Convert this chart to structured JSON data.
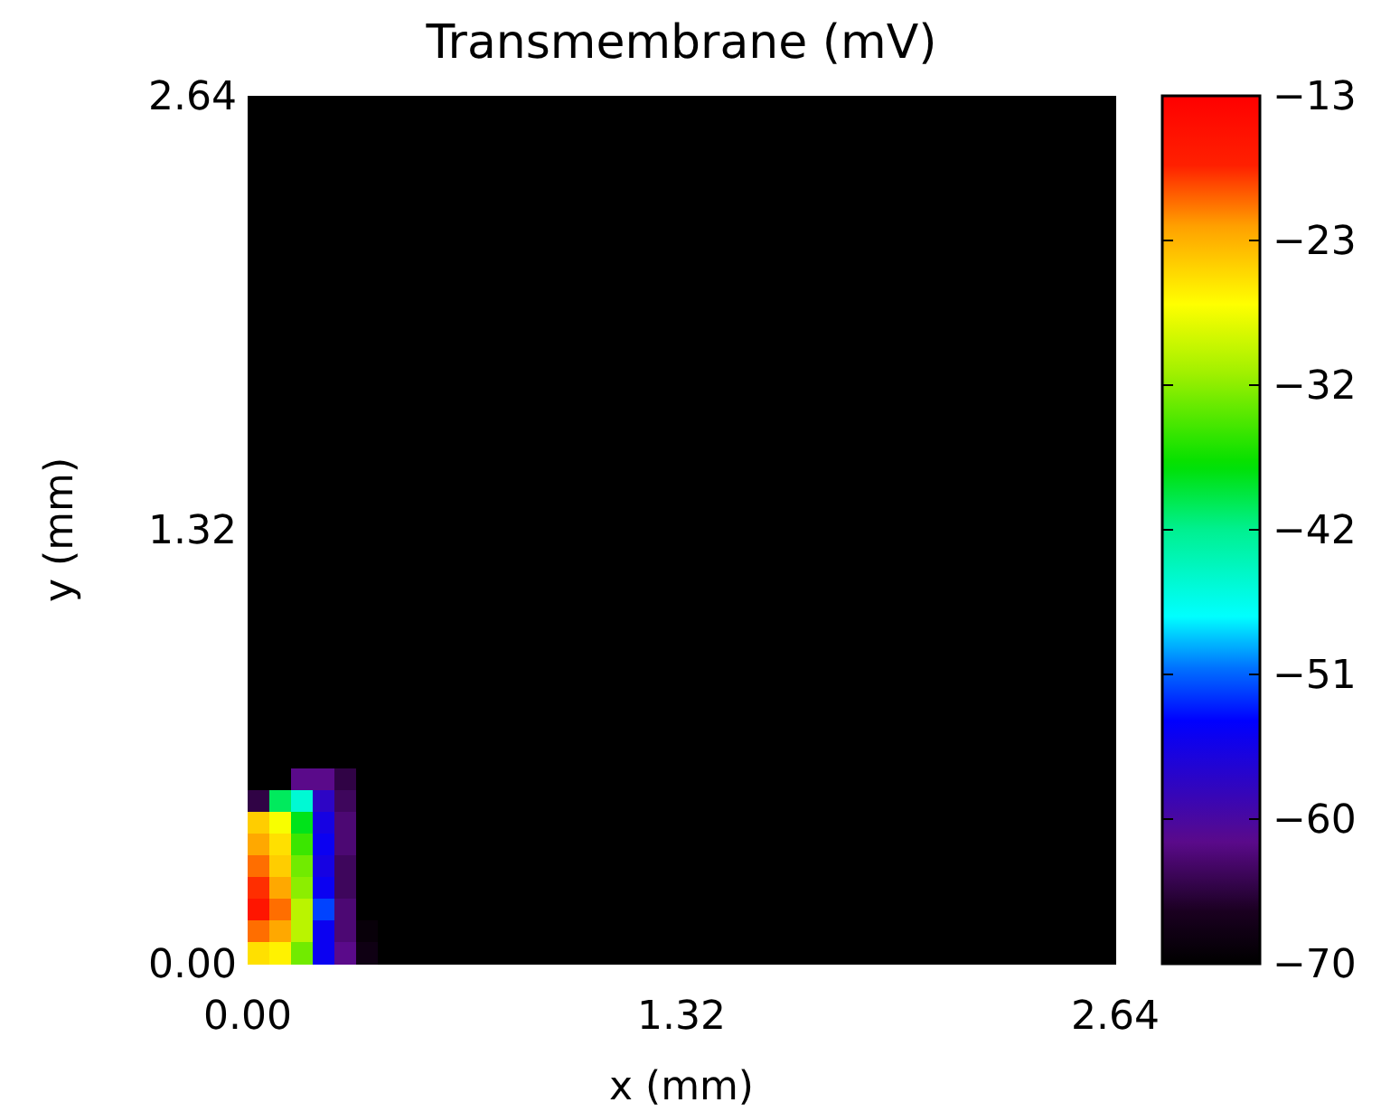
{
  "chart_data": {
    "type": "heatmap",
    "title": "Transmembrane (mV)",
    "xlabel": "x (mm)",
    "ylabel": "y (mm)",
    "xlim": [
      0,
      2.64
    ],
    "ylim": [
      0,
      2.64
    ],
    "xticks": [
      {
        "value": 0,
        "label": "0.00"
      },
      {
        "value": 1.32,
        "label": "1.32"
      },
      {
        "value": 2.64,
        "label": "2.64"
      }
    ],
    "yticks": [
      {
        "value": 0,
        "label": "0.00"
      },
      {
        "value": 1.32,
        "label": "1.32"
      },
      {
        "value": 2.64,
        "label": "2.64"
      }
    ],
    "clim": [
      -70,
      -13
    ],
    "cticks": [
      {
        "value": -13,
        "label": "−13"
      },
      {
        "value": -22.5,
        "label": "−23"
      },
      {
        "value": -32,
        "label": "−32"
      },
      {
        "value": -41.5,
        "label": "−42"
      },
      {
        "value": -51,
        "label": "−51"
      },
      {
        "value": -60.5,
        "label": "−60"
      },
      {
        "value": -70,
        "label": "−70"
      }
    ],
    "cells": [
      [
        -70,
        -70,
        -70,
        -70,
        -70,
        -70,
        -70,
        -70,
        -70,
        -70,
        -70,
        -70,
        -70,
        -70,
        -70,
        -70,
        -70,
        -70,
        -70,
        -70,
        -70,
        -70,
        -70,
        -70,
        -70,
        -70,
        -70,
        -70,
        -70,
        -70,
        -70,
        -70,
        -70,
        -70,
        -70,
        -70,
        -70,
        -70,
        -70,
        -70
      ],
      [
        -70,
        -70,
        -70,
        -70,
        -70,
        -70,
        -70,
        -70,
        -70,
        -70,
        -70,
        -70,
        -70,
        -70,
        -70,
        -70,
        -70,
        -70,
        -70,
        -70,
        -70,
        -70,
        -70,
        -70,
        -70,
        -70,
        -70,
        -70,
        -70,
        -70,
        -70,
        -70,
        -70,
        -70,
        -70,
        -70,
        -70,
        -70,
        -70,
        -70
      ],
      [
        -70,
        -70,
        -70,
        -70,
        -70,
        -70,
        -70,
        -70,
        -70,
        -70,
        -70,
        -70,
        -70,
        -70,
        -70,
        -70,
        -70,
        -70,
        -70,
        -70,
        -70,
        -70,
        -70,
        -70,
        -70,
        -70,
        -70,
        -70,
        -70,
        -70,
        -70,
        -70,
        -70,
        -70,
        -70,
        -70,
        -70,
        -70,
        -70,
        -70
      ],
      [
        -70,
        -70,
        -70,
        -70,
        -70,
        -70,
        -70,
        -70,
        -70,
        -70,
        -70,
        -70,
        -70,
        -70,
        -70,
        -70,
        -70,
        -70,
        -70,
        -70,
        -70,
        -70,
        -70,
        -70,
        -70,
        -70,
        -70,
        -70,
        -70,
        -70,
        -70,
        -70,
        -70,
        -70,
        -70,
        -70,
        -70,
        -70,
        -70,
        -70
      ],
      [
        -70,
        -70,
        -70,
        -70,
        -70,
        -70,
        -70,
        -70,
        -70,
        -70,
        -70,
        -70,
        -70,
        -70,
        -70,
        -70,
        -70,
        -70,
        -70,
        -70,
        -70,
        -70,
        -70,
        -70,
        -70,
        -70,
        -70,
        -70,
        -70,
        -70,
        -70,
        -70,
        -70,
        -70,
        -70,
        -70,
        -70,
        -70,
        -70,
        -70
      ],
      [
        -70,
        -70,
        -70,
        -70,
        -70,
        -70,
        -70,
        -70,
        -70,
        -70,
        -70,
        -70,
        -70,
        -70,
        -70,
        -70,
        -70,
        -70,
        -70,
        -70,
        -70,
        -70,
        -70,
        -70,
        -70,
        -70,
        -70,
        -70,
        -70,
        -70,
        -70,
        -70,
        -70,
        -70,
        -70,
        -70,
        -70,
        -70,
        -70,
        -70
      ],
      [
        -70,
        -70,
        -70,
        -70,
        -70,
        -70,
        -70,
        -70,
        -70,
        -70,
        -70,
        -70,
        -70,
        -70,
        -70,
        -70,
        -70,
        -70,
        -70,
        -70,
        -70,
        -70,
        -70,
        -70,
        -70,
        -70,
        -70,
        -70,
        -70,
        -70,
        -70,
        -70,
        -70,
        -70,
        -70,
        -70,
        -70,
        -70,
        -70,
        -70
      ],
      [
        -70,
        -70,
        -70,
        -70,
        -70,
        -70,
        -70,
        -70,
        -70,
        -70,
        -70,
        -70,
        -70,
        -70,
        -70,
        -70,
        -70,
        -70,
        -70,
        -70,
        -70,
        -70,
        -70,
        -70,
        -70,
        -70,
        -70,
        -70,
        -70,
        -70,
        -70,
        -70,
        -70,
        -70,
        -70,
        -70,
        -70,
        -70,
        -70,
        -70
      ],
      [
        -70,
        -70,
        -70,
        -70,
        -70,
        -70,
        -70,
        -70,
        -70,
        -70,
        -70,
        -70,
        -70,
        -70,
        -70,
        -70,
        -70,
        -70,
        -70,
        -70,
        -70,
        -70,
        -70,
        -70,
        -70,
        -70,
        -70,
        -70,
        -70,
        -70,
        -70,
        -70,
        -70,
        -70,
        -70,
        -70,
        -70,
        -70,
        -70,
        -70
      ],
      [
        -70,
        -70,
        -70,
        -70,
        -70,
        -70,
        -70,
        -70,
        -70,
        -70,
        -70,
        -70,
        -70,
        -70,
        -70,
        -70,
        -70,
        -70,
        -70,
        -70,
        -70,
        -70,
        -70,
        -70,
        -70,
        -70,
        -70,
        -70,
        -70,
        -70,
        -70,
        -70,
        -70,
        -70,
        -70,
        -70,
        -70,
        -70,
        -70,
        -70
      ],
      [
        -70,
        -70,
        -70,
        -70,
        -70,
        -70,
        -70,
        -70,
        -70,
        -70,
        -70,
        -70,
        -70,
        -70,
        -70,
        -70,
        -70,
        -70,
        -70,
        -70,
        -70,
        -70,
        -70,
        -70,
        -70,
        -70,
        -70,
        -70,
        -70,
        -70,
        -70,
        -70,
        -70,
        -70,
        -70,
        -70,
        -70,
        -70,
        -70,
        -70
      ],
      [
        -70,
        -70,
        -70,
        -70,
        -70,
        -70,
        -70,
        -70,
        -70,
        -70,
        -70,
        -70,
        -70,
        -70,
        -70,
        -70,
        -70,
        -70,
        -70,
        -70,
        -70,
        -70,
        -70,
        -70,
        -70,
        -70,
        -70,
        -70,
        -70,
        -70,
        -70,
        -70,
        -70,
        -70,
        -70,
        -70,
        -70,
        -70,
        -70,
        -70
      ],
      [
        -70,
        -70,
        -70,
        -70,
        -70,
        -70,
        -70,
        -70,
        -70,
        -70,
        -70,
        -70,
        -70,
        -70,
        -70,
        -70,
        -70,
        -70,
        -70,
        -70,
        -70,
        -70,
        -70,
        -70,
        -70,
        -70,
        -70,
        -70,
        -70,
        -70,
        -70,
        -70,
        -70,
        -70,
        -70,
        -70,
        -70,
        -70,
        -70,
        -70
      ],
      [
        -70,
        -70,
        -70,
        -70,
        -70,
        -70,
        -70,
        -70,
        -70,
        -70,
        -70,
        -70,
        -70,
        -70,
        -70,
        -70,
        -70,
        -70,
        -70,
        -70,
        -70,
        -70,
        -70,
        -70,
        -70,
        -70,
        -70,
        -70,
        -70,
        -70,
        -70,
        -70,
        -70,
        -70,
        -70,
        -70,
        -70,
        -70,
        -70,
        -70
      ],
      [
        -70,
        -70,
        -70,
        -70,
        -70,
        -70,
        -70,
        -70,
        -70,
        -70,
        -70,
        -70,
        -70,
        -70,
        -70,
        -70,
        -70,
        -70,
        -70,
        -70,
        -70,
        -70,
        -70,
        -70,
        -70,
        -70,
        -70,
        -70,
        -70,
        -70,
        -70,
        -70,
        -70,
        -70,
        -70,
        -70,
        -70,
        -70,
        -70,
        -70
      ],
      [
        -70,
        -70,
        -70,
        -70,
        -70,
        -70,
        -70,
        -70,
        -70,
        -70,
        -70,
        -70,
        -70,
        -70,
        -70,
        -70,
        -70,
        -70,
        -70,
        -70,
        -70,
        -70,
        -70,
        -70,
        -70,
        -70,
        -70,
        -70,
        -70,
        -70,
        -70,
        -70,
        -70,
        -70,
        -70,
        -70,
        -70,
        -70,
        -70,
        -70
      ],
      [
        -70,
        -70,
        -70,
        -70,
        -70,
        -70,
        -70,
        -70,
        -70,
        -70,
        -70,
        -70,
        -70,
        -70,
        -70,
        -70,
        -70,
        -70,
        -70,
        -70,
        -70,
        -70,
        -70,
        -70,
        -70,
        -70,
        -70,
        -70,
        -70,
        -70,
        -70,
        -70,
        -70,
        -70,
        -70,
        -70,
        -70,
        -70,
        -70,
        -70
      ],
      [
        -70,
        -70,
        -70,
        -70,
        -70,
        -70,
        -70,
        -70,
        -70,
        -70,
        -70,
        -70,
        -70,
        -70,
        -70,
        -70,
        -70,
        -70,
        -70,
        -70,
        -70,
        -70,
        -70,
        -70,
        -70,
        -70,
        -70,
        -70,
        -70,
        -70,
        -70,
        -70,
        -70,
        -70,
        -70,
        -70,
        -70,
        -70,
        -70,
        -70
      ],
      [
        -70,
        -70,
        -70,
        -70,
        -70,
        -70,
        -70,
        -70,
        -70,
        -70,
        -70,
        -70,
        -70,
        -70,
        -70,
        -70,
        -70,
        -70,
        -70,
        -70,
        -70,
        -70,
        -70,
        -70,
        -70,
        -70,
        -70,
        -70,
        -70,
        -70,
        -70,
        -70,
        -70,
        -70,
        -70,
        -70,
        -70,
        -70,
        -70,
        -70
      ],
      [
        -70,
        -70,
        -70,
        -70,
        -70,
        -70,
        -70,
        -70,
        -70,
        -70,
        -70,
        -70,
        -70,
        -70,
        -70,
        -70,
        -70,
        -70,
        -70,
        -70,
        -70,
        -70,
        -70,
        -70,
        -70,
        -70,
        -70,
        -70,
        -70,
        -70,
        -70,
        -70,
        -70,
        -70,
        -70,
        -70,
        -70,
        -70,
        -70,
        -70
      ],
      [
        -70,
        -70,
        -70,
        -70,
        -70,
        -70,
        -70,
        -70,
        -70,
        -70,
        -70,
        -70,
        -70,
        -70,
        -70,
        -70,
        -70,
        -70,
        -70,
        -70,
        -70,
        -70,
        -70,
        -70,
        -70,
        -70,
        -70,
        -70,
        -70,
        -70,
        -70,
        -70,
        -70,
        -70,
        -70,
        -70,
        -70,
        -70,
        -70,
        -70
      ],
      [
        -70,
        -70,
        -70,
        -70,
        -70,
        -70,
        -70,
        -70,
        -70,
        -70,
        -70,
        -70,
        -70,
        -70,
        -70,
        -70,
        -70,
        -70,
        -70,
        -70,
        -70,
        -70,
        -70,
        -70,
        -70,
        -70,
        -70,
        -70,
        -70,
        -70,
        -70,
        -70,
        -70,
        -70,
        -70,
        -70,
        -70,
        -70,
        -70,
        -70
      ],
      [
        -70,
        -70,
        -70,
        -70,
        -70,
        -70,
        -70,
        -70,
        -70,
        -70,
        -70,
        -70,
        -70,
        -70,
        -70,
        -70,
        -70,
        -70,
        -70,
        -70,
        -70,
        -70,
        -70,
        -70,
        -70,
        -70,
        -70,
        -70,
        -70,
        -70,
        -70,
        -70,
        -70,
        -70,
        -70,
        -70,
        -70,
        -70,
        -70,
        -70
      ],
      [
        -70,
        -70,
        -70,
        -70,
        -70,
        -70,
        -70,
        -70,
        -70,
        -70,
        -70,
        -70,
        -70,
        -70,
        -70,
        -70,
        -70,
        -70,
        -70,
        -70,
        -70,
        -70,
        -70,
        -70,
        -70,
        -70,
        -70,
        -70,
        -70,
        -70,
        -70,
        -70,
        -70,
        -70,
        -70,
        -70,
        -70,
        -70,
        -70,
        -70
      ],
      [
        -70,
        -70,
        -70,
        -70,
        -70,
        -70,
        -70,
        -70,
        -70,
        -70,
        -70,
        -70,
        -70,
        -70,
        -70,
        -70,
        -70,
        -70,
        -70,
        -70,
        -70,
        -70,
        -70,
        -70,
        -70,
        -70,
        -70,
        -70,
        -70,
        -70,
        -70,
        -70,
        -70,
        -70,
        -70,
        -70,
        -70,
        -70,
        -70,
        -70
      ],
      [
        -70,
        -70,
        -70,
        -70,
        -70,
        -70,
        -70,
        -70,
        -70,
        -70,
        -70,
        -70,
        -70,
        -70,
        -70,
        -70,
        -70,
        -70,
        -70,
        -70,
        -70,
        -70,
        -70,
        -70,
        -70,
        -70,
        -70,
        -70,
        -70,
        -70,
        -70,
        -70,
        -70,
        -70,
        -70,
        -70,
        -70,
        -70,
        -70,
        -70
      ],
      [
        -70,
        -70,
        -70,
        -70,
        -70,
        -70,
        -70,
        -70,
        -70,
        -70,
        -70,
        -70,
        -70,
        -70,
        -70,
        -70,
        -70,
        -70,
        -70,
        -70,
        -70,
        -70,
        -70,
        -70,
        -70,
        -70,
        -70,
        -70,
        -70,
        -70,
        -70,
        -70,
        -70,
        -70,
        -70,
        -70,
        -70,
        -70,
        -70,
        -70
      ],
      [
        -70,
        -70,
        -70,
        -70,
        -70,
        -70,
        -70,
        -70,
        -70,
        -70,
        -70,
        -70,
        -70,
        -70,
        -70,
        -70,
        -70,
        -70,
        -70,
        -70,
        -70,
        -70,
        -70,
        -70,
        -70,
        -70,
        -70,
        -70,
        -70,
        -70,
        -70,
        -70,
        -70,
        -70,
        -70,
        -70,
        -70,
        -70,
        -70,
        -70
      ],
      [
        -70,
        -70,
        -70,
        -70,
        -70,
        -70,
        -70,
        -70,
        -70,
        -70,
        -70,
        -70,
        -70,
        -70,
        -70,
        -70,
        -70,
        -70,
        -70,
        -70,
        -70,
        -70,
        -70,
        -70,
        -70,
        -70,
        -70,
        -70,
        -70,
        -70,
        -70,
        -70,
        -70,
        -70,
        -70,
        -70,
        -70,
        -70,
        -70,
        -70
      ],
      [
        -70,
        -70,
        -70,
        -70,
        -70,
        -70,
        -70,
        -70,
        -70,
        -70,
        -70,
        -70,
        -70,
        -70,
        -70,
        -70,
        -70,
        -70,
        -70,
        -70,
        -70,
        -70,
        -70,
        -70,
        -70,
        -70,
        -70,
        -70,
        -70,
        -70,
        -70,
        -70,
        -70,
        -70,
        -70,
        -70,
        -70,
        -70,
        -70,
        -70
      ],
      [
        -70,
        -70,
        -70,
        -70,
        -70,
        -70,
        -70,
        -70,
        -70,
        -70,
        -70,
        -70,
        -70,
        -70,
        -70,
        -70,
        -70,
        -70,
        -70,
        -70,
        -70,
        -70,
        -70,
        -70,
        -70,
        -70,
        -70,
        -70,
        -70,
        -70,
        -70,
        -70,
        -70,
        -70,
        -70,
        -70,
        -70,
        -70,
        -70,
        -70
      ],
      [
        -70,
        -70,
        -62,
        -62,
        -65,
        -70,
        -70,
        -70,
        -70,
        -70,
        -70,
        -70,
        -70,
        -70,
        -70,
        -70,
        -70,
        -70,
        -70,
        -70,
        -70,
        -70,
        -70,
        -70,
        -70,
        -70,
        -70,
        -70,
        -70,
        -70,
        -70,
        -70,
        -70,
        -70,
        -70,
        -70,
        -70,
        -70,
        -70,
        -70
      ],
      [
        -65,
        -40,
        -45,
        -58,
        -64,
        -70,
        -70,
        -70,
        -70,
        -70,
        -70,
        -70,
        -70,
        -70,
        -70,
        -70,
        -70,
        -70,
        -70,
        -70,
        -70,
        -70,
        -70,
        -70,
        -70,
        -70,
        -70,
        -70,
        -70,
        -70,
        -70,
        -70,
        -70,
        -70,
        -70,
        -70,
        -70,
        -70,
        -70,
        -70
      ],
      [
        -24,
        -27,
        -38,
        -56,
        -63,
        -70,
        -70,
        -70,
        -70,
        -70,
        -70,
        -70,
        -70,
        -70,
        -70,
        -70,
        -70,
        -70,
        -70,
        -70,
        -70,
        -70,
        -70,
        -70,
        -70,
        -70,
        -70,
        -70,
        -70,
        -70,
        -70,
        -70,
        -70,
        -70,
        -70,
        -70,
        -70,
        -70,
        -70,
        -70
      ],
      [
        -22,
        -25,
        -35,
        -55,
        -63,
        -70,
        -70,
        -70,
        -70,
        -70,
        -70,
        -70,
        -70,
        -70,
        -70,
        -70,
        -70,
        -70,
        -70,
        -70,
        -70,
        -70,
        -70,
        -70,
        -70,
        -70,
        -70,
        -70,
        -70,
        -70,
        -70,
        -70,
        -70,
        -70,
        -70,
        -70,
        -70,
        -70,
        -70,
        -70
      ],
      [
        -20,
        -24,
        -33,
        -56,
        -64,
        -70,
        -70,
        -70,
        -70,
        -70,
        -70,
        -70,
        -70,
        -70,
        -70,
        -70,
        -70,
        -70,
        -70,
        -70,
        -70,
        -70,
        -70,
        -70,
        -70,
        -70,
        -70,
        -70,
        -70,
        -70,
        -70,
        -70,
        -70,
        -70,
        -70,
        -70,
        -70,
        -70,
        -70,
        -70
      ],
      [
        -18,
        -22,
        -32,
        -55,
        -64,
        -70,
        -70,
        -70,
        -70,
        -70,
        -70,
        -70,
        -70,
        -70,
        -70,
        -70,
        -70,
        -70,
        -70,
        -70,
        -70,
        -70,
        -70,
        -70,
        -70,
        -70,
        -70,
        -70,
        -70,
        -70,
        -70,
        -70,
        -70,
        -70,
        -70,
        -70,
        -70,
        -70,
        -70,
        -70
      ],
      [
        -16,
        -20,
        -30,
        -52,
        -63,
        -70,
        -70,
        -70,
        -70,
        -70,
        -70,
        -70,
        -70,
        -70,
        -70,
        -70,
        -70,
        -70,
        -70,
        -70,
        -70,
        -70,
        -70,
        -70,
        -70,
        -70,
        -70,
        -70,
        -70,
        -70,
        -70,
        -70,
        -70,
        -70,
        -70,
        -70,
        -70,
        -70,
        -70,
        -70
      ],
      [
        -20,
        -22,
        -30,
        -55,
        -63,
        -69,
        -70,
        -70,
        -70,
        -70,
        -70,
        -70,
        -70,
        -70,
        -70,
        -70,
        -70,
        -70,
        -70,
        -70,
        -70,
        -70,
        -70,
        -70,
        -70,
        -70,
        -70,
        -70,
        -70,
        -70,
        -70,
        -70,
        -70,
        -70,
        -70,
        -70,
        -70,
        -70,
        -70,
        -70
      ],
      [
        -25,
        -26,
        -33,
        -55,
        -62,
        -68,
        -70,
        -70,
        -70,
        -70,
        -70,
        -70,
        -70,
        -70,
        -70,
        -70,
        -70,
        -70,
        -70,
        -70,
        -70,
        -70,
        -70,
        -70,
        -70,
        -70,
        -70,
        -70,
        -70,
        -70,
        -70,
        -70,
        -70,
        -70,
        -70,
        -70,
        -70,
        -70,
        -70,
        -70
      ]
    ]
  }
}
